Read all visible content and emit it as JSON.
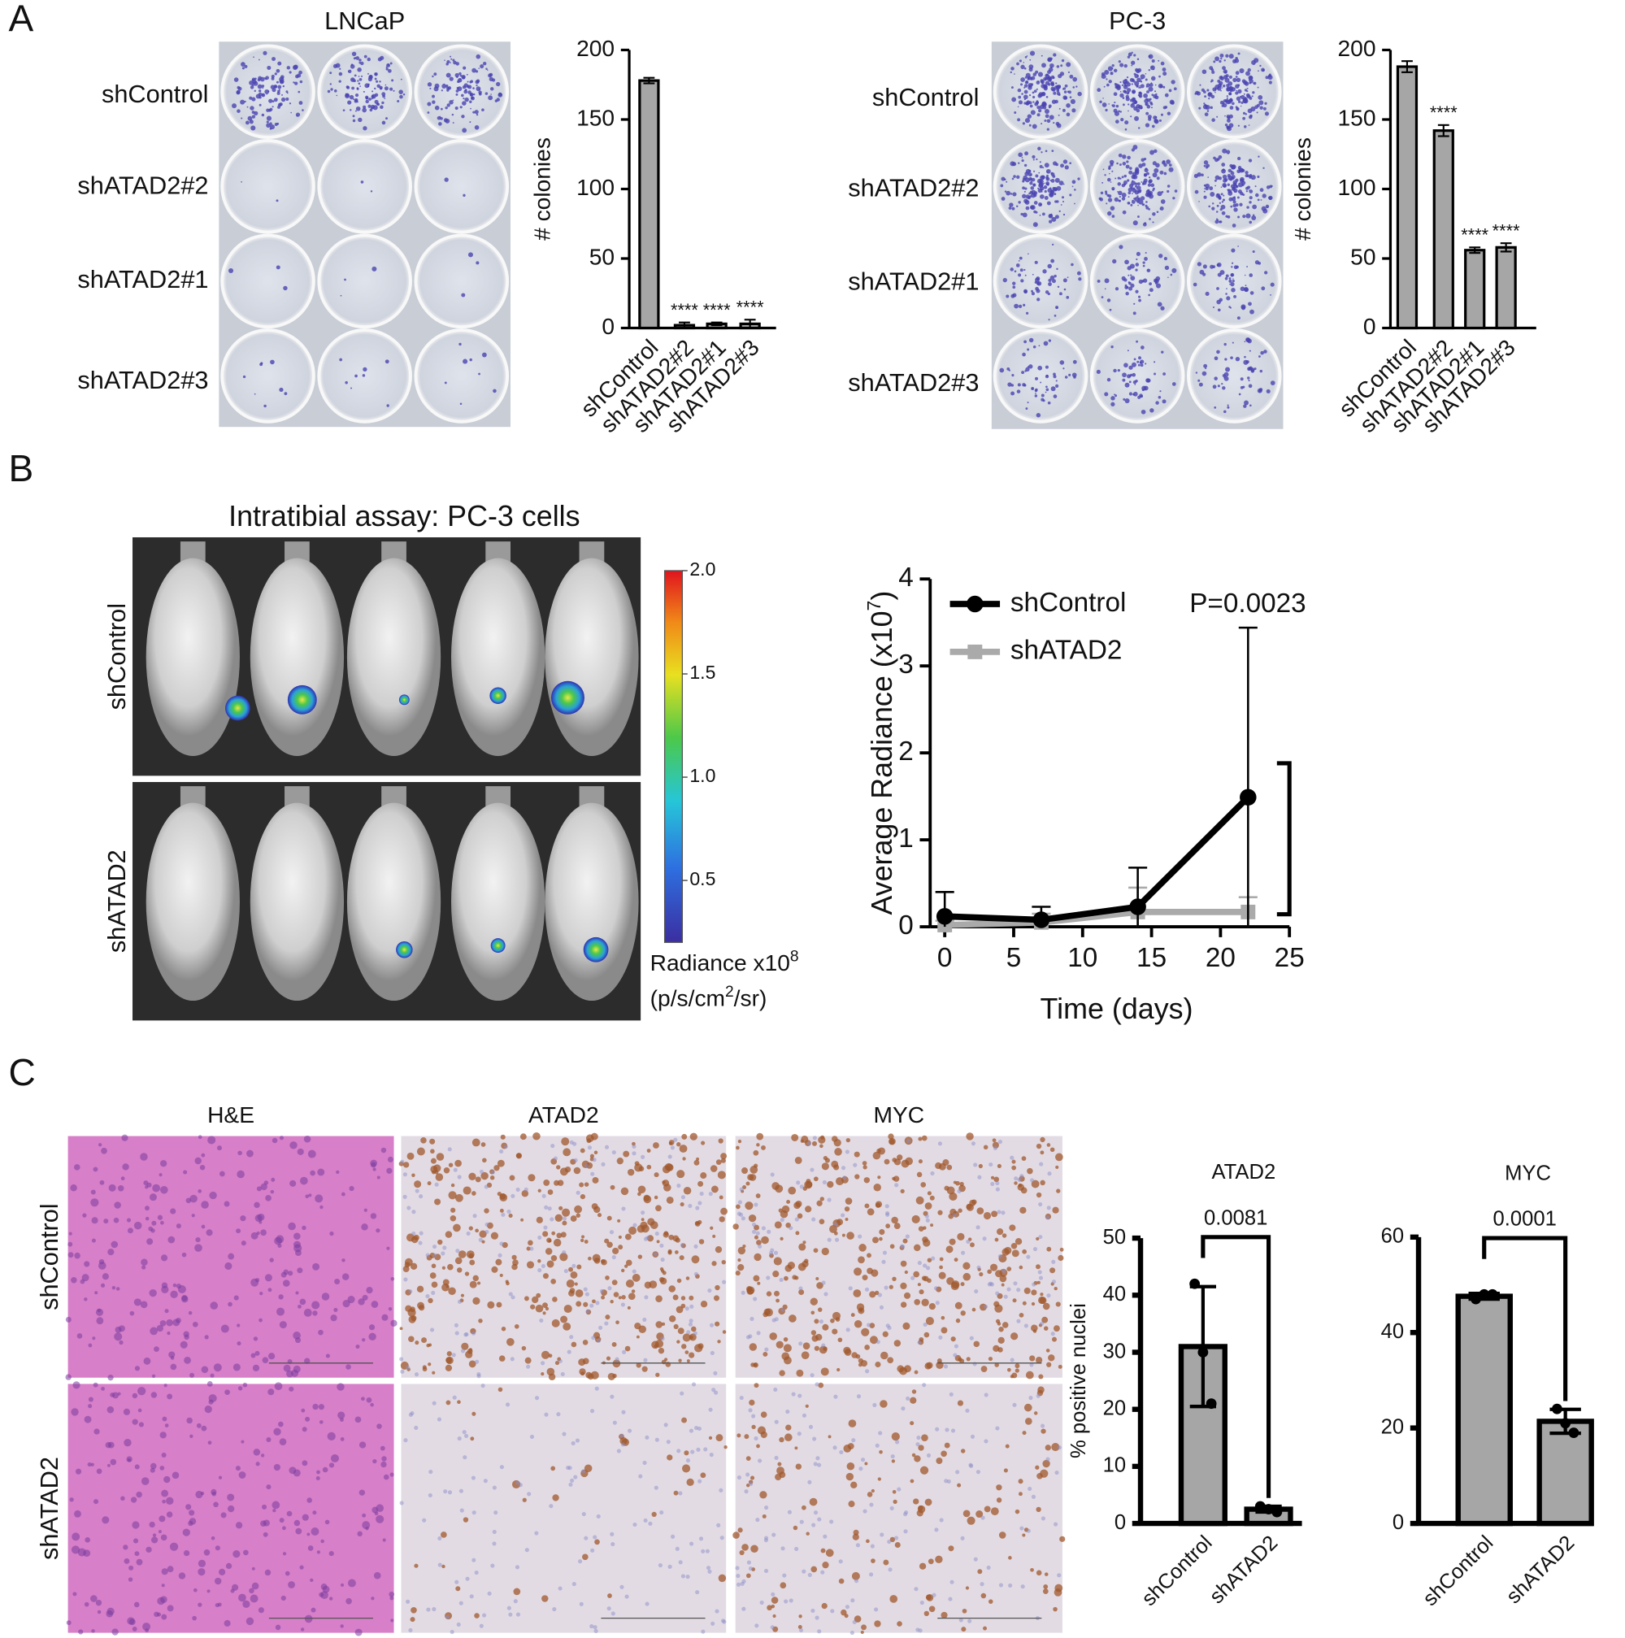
{
  "panel_labels": [
    "A",
    "B",
    "C"
  ],
  "images": {
    "lncap": {
      "title": "LNCaP",
      "rows": [
        "shControl",
        "shATAD2#2",
        "shATAD2#1",
        "shATAD2#3"
      ]
    },
    "pc3": {
      "title": "PC-3",
      "rows": [
        "shControl",
        "shATAD2#2",
        "shATAD2#1",
        "shATAD2#3"
      ]
    },
    "mice": {
      "title": "Intratibial assay: PC-3 cells",
      "rows": [
        "shControl",
        "shATAD2"
      ]
    },
    "histology": {
      "columns": [
        "H&E",
        "ATAD2",
        "MYC"
      ],
      "rows": [
        "shControl",
        "shATAD2"
      ]
    }
  },
  "colorbar": {
    "lim": [
      0.2,
      2.0
    ],
    "ticks": [
      {
        "value": 0.5,
        "label": "0.5"
      },
      {
        "value": 1,
        "label": "1.0"
      },
      {
        "value": 1.5,
        "label": "1.5"
      },
      {
        "value": 2,
        "label": "2.0"
      }
    ],
    "label": "Radiance x10",
    "label_sup": "8",
    "unit": "(p/s/cm",
    "unit_sup": "2",
    "unit_end": "/sr)"
  },
  "chart_data": [
    {
      "type": "bar",
      "categories": [
        "shControl",
        "shATAD2#2",
        "shATAD2#1",
        "shATAD2#3"
      ],
      "values": [
        178,
        2,
        3,
        3
      ],
      "errors": [
        2,
        2,
        1,
        3
      ],
      "value_annotations": [
        null,
        "****",
        "****",
        "****"
      ],
      "ylabel": "# colonies",
      "ylim": [
        0,
        200
      ],
      "yticks": [
        0,
        50,
        100,
        150,
        200
      ],
      "color": "#a6a6a6"
    },
    {
      "type": "bar",
      "categories": [
        "shControl",
        "shATAD2#2",
        "shATAD2#1",
        "shATAD2#3"
      ],
      "values": [
        188,
        142,
        56,
        58
      ],
      "errors": [
        4,
        4,
        2,
        3
      ],
      "value_annotations": [
        null,
        "****",
        "****",
        "****"
      ],
      "ylabel": "# colonies",
      "ylim": [
        0,
        200
      ],
      "yticks": [
        0,
        50,
        100,
        150,
        200
      ],
      "color": "#a6a6a6"
    },
    {
      "type": "line",
      "xlabel": "Time (days)",
      "ylabel": "Average Radiance (x10",
      "ylabel_sup": "7",
      "ylabel_end": ")",
      "x": [
        0,
        7,
        14,
        22
      ],
      "xlim": [
        0,
        25
      ],
      "xticks": [
        0,
        5,
        10,
        15,
        20,
        25
      ],
      "ylim": [
        0,
        4
      ],
      "yticks": [
        0,
        1,
        2,
        3,
        4
      ],
      "annotation": "P=0.0023",
      "series": [
        {
          "name": "shControl",
          "color": "#000000",
          "values": [
            0.12,
            0.08,
            0.23,
            1.49
          ],
          "errors": [
            0.28,
            0.15,
            0.45,
            1.95
          ]
        },
        {
          "name": "shATAD2",
          "color": "#aaaaaa",
          "values": [
            0.02,
            0.05,
            0.17,
            0.17
          ],
          "errors": [
            0.05,
            0.1,
            0.28,
            0.17
          ]
        }
      ]
    },
    {
      "type": "bar",
      "title": "ATAD2",
      "categories": [
        "shControl",
        "shATAD2"
      ],
      "values": [
        31,
        2.5
      ],
      "errors": [
        10.5,
        0.5
      ],
      "points": [
        [
          42,
          30,
          21
        ],
        [
          3,
          2.5,
          2
        ]
      ],
      "annotation": "0.0081",
      "ylabel": "% positive nuclei",
      "ylim": [
        0,
        50
      ],
      "yticks": [
        0,
        10,
        20,
        30,
        40,
        50
      ],
      "color": "#a6a6a6"
    },
    {
      "type": "bar",
      "title": "MYC",
      "categories": [
        "shControl",
        "shATAD2"
      ],
      "values": [
        47.6,
        21.4
      ],
      "errors": [
        0.6,
        2.5
      ],
      "points": [
        [
          47,
          48,
          48
        ],
        [
          24,
          21,
          19
        ]
      ],
      "annotation": "0.0001",
      "ylim": [
        0,
        60
      ],
      "yticks": [
        0,
        20,
        40,
        60
      ],
      "color": "#a6a6a6"
    }
  ]
}
